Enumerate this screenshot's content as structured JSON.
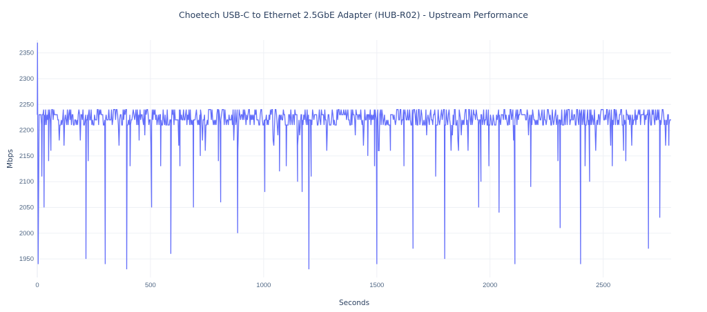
{
  "chart_data": {
    "type": "line",
    "title": "Choetech USB-C to Ethernet 2.5GbE Adapter (HUB-R02) - Upstream Performance",
    "xlabel": "Seconds",
    "ylabel": "Mbps",
    "xlim": [
      0,
      2800
    ],
    "ylim": [
      1914,
      2375
    ],
    "xticks": [
      0,
      500,
      1000,
      1500,
      2000,
      2500
    ],
    "yticks": [
      1950,
      2000,
      2050,
      2100,
      2150,
      2200,
      2250,
      2300,
      2350
    ],
    "grid": true,
    "line_color": "#636efa",
    "series": [
      {
        "name": "Upstream",
        "sample_step_seconds": 3,
        "baseline_levels": [
          2210,
          2220,
          2230,
          2240
        ],
        "start_points": [
          [
            0,
            2230
          ],
          [
            1,
            2370
          ],
          [
            4,
            1940
          ],
          [
            8,
            2230
          ]
        ],
        "dips": [
          [
            20,
            2110
          ],
          [
            30,
            2050
          ],
          [
            50,
            2140
          ],
          [
            60,
            2160
          ],
          [
            215,
            1950
          ],
          [
            225,
            2140
          ],
          [
            300,
            1940
          ],
          [
            395,
            1930
          ],
          [
            410,
            2130
          ],
          [
            450,
            2180
          ],
          [
            505,
            2050
          ],
          [
            545,
            2130
          ],
          [
            590,
            1960
          ],
          [
            630,
            2130
          ],
          [
            690,
            2050
          ],
          [
            720,
            2150
          ],
          [
            800,
            2140
          ],
          [
            810,
            2060
          ],
          [
            885,
            2000
          ],
          [
            1005,
            2080
          ],
          [
            1070,
            2120
          ],
          [
            1100,
            2130
          ],
          [
            1150,
            2100
          ],
          [
            1170,
            2080
          ],
          [
            1200,
            1930
          ],
          [
            1210,
            2110
          ],
          [
            1460,
            2150
          ],
          [
            1490,
            2130
          ],
          [
            1500,
            1940
          ],
          [
            1560,
            2160
          ],
          [
            1620,
            2130
          ],
          [
            1660,
            1970
          ],
          [
            1760,
            2110
          ],
          [
            1800,
            1950
          ],
          [
            1950,
            2050
          ],
          [
            1960,
            2100
          ],
          [
            1995,
            2130
          ],
          [
            2040,
            2040
          ],
          [
            2110,
            1940
          ],
          [
            2180,
            2090
          ],
          [
            2300,
            2140
          ],
          [
            2310,
            2010
          ],
          [
            2400,
            1940
          ],
          [
            2420,
            2130
          ],
          [
            2440,
            2100
          ],
          [
            2540,
            2130
          ],
          [
            2590,
            2160
          ],
          [
            2600,
            2140
          ],
          [
            2700,
            1970
          ],
          [
            2750,
            2030
          ],
          [
            2790,
            2170
          ]
        ]
      }
    ]
  }
}
